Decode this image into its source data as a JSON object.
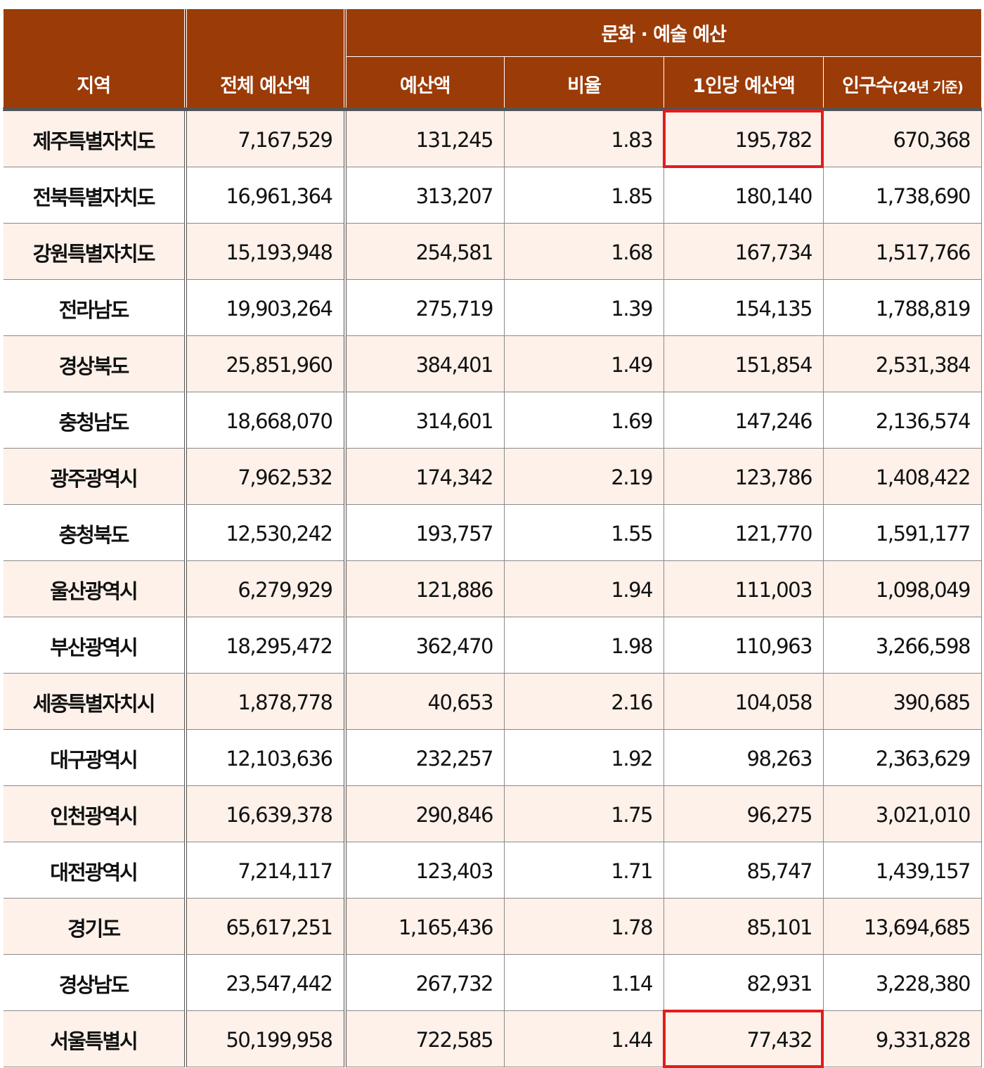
{
  "header": {
    "region": "지역",
    "total_budget": "전체 예산액",
    "culture_group": "문화 · 예술 예산",
    "budget": "예산액",
    "ratio": "비율",
    "per_capita": "1인당 예산액",
    "population": "인구수",
    "population_note": "(24년 기준)"
  },
  "highlight_color": "#e11d1d",
  "header_color": "#9b3b07",
  "rows": [
    {
      "region": "제주특별자치도",
      "total": "7,167,529",
      "budget": "131,245",
      "ratio": "1.83",
      "per_capita": "195,782",
      "population": "670,368",
      "highlight": true
    },
    {
      "region": "전북특별자치도",
      "total": "16,961,364",
      "budget": "313,207",
      "ratio": "1.85",
      "per_capita": "180,140",
      "population": "1,738,690"
    },
    {
      "region": "강원특별자치도",
      "total": "15,193,948",
      "budget": "254,581",
      "ratio": "1.68",
      "per_capita": "167,734",
      "population": "1,517,766"
    },
    {
      "region": "전라남도",
      "total": "19,903,264",
      "budget": "275,719",
      "ratio": "1.39",
      "per_capita": "154,135",
      "population": "1,788,819"
    },
    {
      "region": "경상북도",
      "total": "25,851,960",
      "budget": "384,401",
      "ratio": "1.49",
      "per_capita": "151,854",
      "population": "2,531,384"
    },
    {
      "region": "충청남도",
      "total": "18,668,070",
      "budget": "314,601",
      "ratio": "1.69",
      "per_capita": "147,246",
      "population": "2,136,574"
    },
    {
      "region": "광주광역시",
      "total": "7,962,532",
      "budget": "174,342",
      "ratio": "2.19",
      "per_capita": "123,786",
      "population": "1,408,422"
    },
    {
      "region": "충청북도",
      "total": "12,530,242",
      "budget": "193,757",
      "ratio": "1.55",
      "per_capita": "121,770",
      "population": "1,591,177"
    },
    {
      "region": "울산광역시",
      "total": "6,279,929",
      "budget": "121,886",
      "ratio": "1.94",
      "per_capita": "111,003",
      "population": "1,098,049"
    },
    {
      "region": "부산광역시",
      "total": "18,295,472",
      "budget": "362,470",
      "ratio": "1.98",
      "per_capita": "110,963",
      "population": "3,266,598"
    },
    {
      "region": "세종특별자치시",
      "total": "1,878,778",
      "budget": "40,653",
      "ratio": "2.16",
      "per_capita": "104,058",
      "population": "390,685"
    },
    {
      "region": "대구광역시",
      "total": "12,103,636",
      "budget": "232,257",
      "ratio": "1.92",
      "per_capita": "98,263",
      "population": "2,363,629"
    },
    {
      "region": "인천광역시",
      "total": "16,639,378",
      "budget": "290,846",
      "ratio": "1.75",
      "per_capita": "96,275",
      "population": "3,021,010"
    },
    {
      "region": "대전광역시",
      "total": "7,214,117",
      "budget": "123,403",
      "ratio": "1.71",
      "per_capita": "85,747",
      "population": "1,439,157"
    },
    {
      "region": "경기도",
      "total": "65,617,251",
      "budget": "1,165,436",
      "ratio": "1.78",
      "per_capita": "85,101",
      "population": "13,694,685"
    },
    {
      "region": "경상남도",
      "total": "23,547,442",
      "budget": "267,732",
      "ratio": "1.14",
      "per_capita": "82,931",
      "population": "3,228,380"
    },
    {
      "region": "서울특별시",
      "total": "50,199,958",
      "budget": "722,585",
      "ratio": "1.44",
      "per_capita": "77,432",
      "population": "9,331,828",
      "highlight": true
    }
  ]
}
